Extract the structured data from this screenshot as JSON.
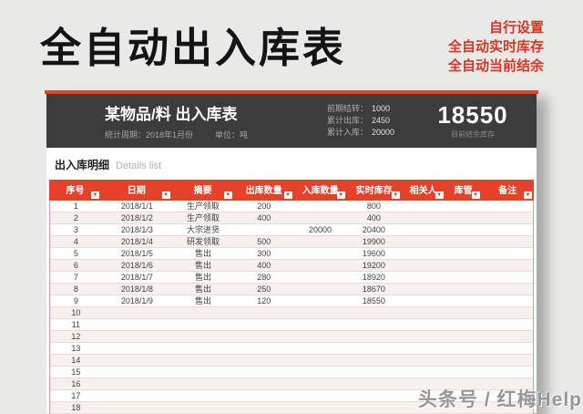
{
  "page": {
    "title": "全自动出入库表",
    "notes": [
      "自行设置",
      "全自动实时库存",
      "全自动当前结余"
    ],
    "watermark": "头条号 / 红梅Help"
  },
  "panel_header": {
    "title": "某物品/料 出入库表",
    "period_label": "统计周期：2018年1月份",
    "unit_label": "单位：吨",
    "stats": [
      {
        "label": "前期结转：",
        "value": "1000"
      },
      {
        "label": "累计出库：",
        "value": "2450"
      },
      {
        "label": "累计入库：",
        "value": "20000"
      }
    ],
    "balance": {
      "value": "18550",
      "caption": "目前结余库存"
    }
  },
  "details": {
    "title_zh": "出入库明细",
    "title_en": "Details list",
    "filter_icon": "▼"
  },
  "chart_data": {
    "type": "table",
    "columns": [
      "序号",
      "日期",
      "摘要",
      "出库数量",
      "入库数量",
      "实时库存",
      "相关人",
      "库管",
      "备注"
    ],
    "rows": [
      [
        "1",
        "2018/1/1",
        "生产领取",
        "200",
        "",
        "800",
        "",
        "",
        ""
      ],
      [
        "2",
        "2018/1/2",
        "生产领取",
        "400",
        "",
        "400",
        "",
        "",
        ""
      ],
      [
        "3",
        "2018/1/3",
        "大宗进货",
        "",
        "20000",
        "20400",
        "",
        "",
        ""
      ],
      [
        "4",
        "2018/1/4",
        "研发领取",
        "500",
        "",
        "19900",
        "",
        "",
        ""
      ],
      [
        "5",
        "2018/1/5",
        "售出",
        "300",
        "",
        "19600",
        "",
        "",
        ""
      ],
      [
        "6",
        "2018/1/6",
        "售出",
        "400",
        "",
        "19200",
        "",
        "",
        ""
      ],
      [
        "7",
        "2018/1/7",
        "售出",
        "280",
        "",
        "18920",
        "",
        "",
        ""
      ],
      [
        "8",
        "2018/1/8",
        "售出",
        "250",
        "",
        "18670",
        "",
        "",
        ""
      ],
      [
        "9",
        "2018/1/9",
        "售出",
        "120",
        "",
        "18550",
        "",
        "",
        ""
      ],
      [
        "10",
        "",
        "",
        "",
        "",
        "",
        "",
        "",
        ""
      ],
      [
        "11",
        "",
        "",
        "",
        "",
        "",
        "",
        "",
        ""
      ],
      [
        "12",
        "",
        "",
        "",
        "",
        "",
        "",
        "",
        ""
      ],
      [
        "13",
        "",
        "",
        "",
        "",
        "",
        "",
        "",
        ""
      ],
      [
        "14",
        "",
        "",
        "",
        "",
        "",
        "",
        "",
        ""
      ],
      [
        "15",
        "",
        "",
        "",
        "",
        "",
        "",
        "",
        ""
      ],
      [
        "16",
        "",
        "",
        "",
        "",
        "",
        "",
        "",
        ""
      ],
      [
        "17",
        "",
        "",
        "",
        "",
        "",
        "",
        "",
        ""
      ],
      [
        "18",
        "",
        "",
        "",
        "",
        "",
        "",
        "",
        ""
      ]
    ]
  },
  "colors": {
    "accent_red": "#E8402B",
    "dark_header": "#3C3C3C",
    "page_bg": "#E9E9E7",
    "row_alt": "#F6F0EE",
    "row_border": "#F0D8D3"
  }
}
